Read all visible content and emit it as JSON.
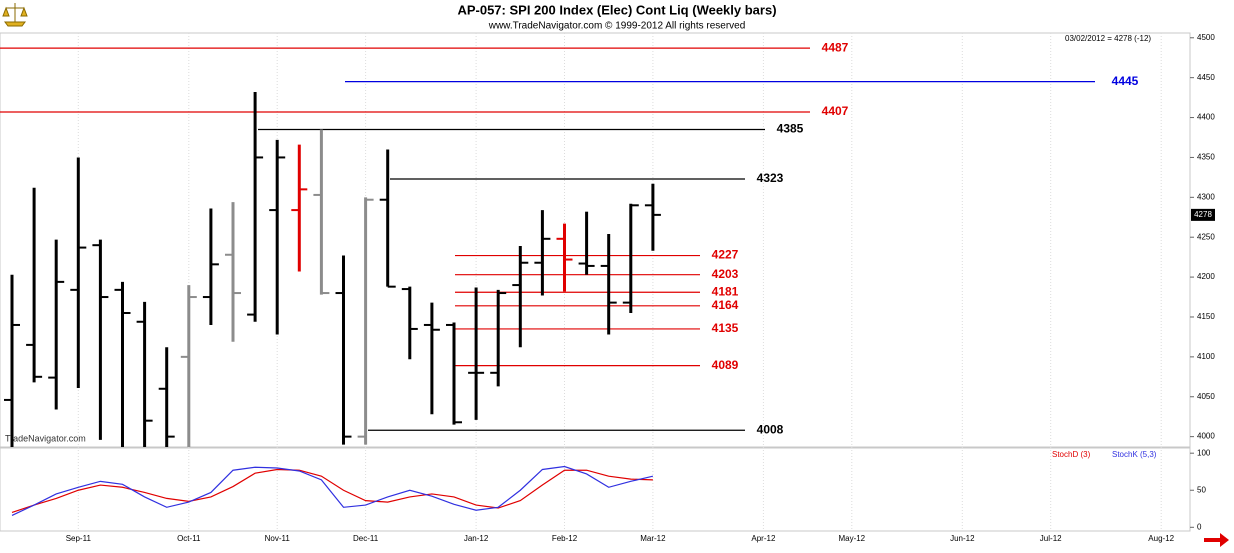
{
  "chart_data": [
    {
      "type": "ohlc",
      "title": "AP-057:  SPI 200 Index (Elec) Cont Liq  (Weekly bars)",
      "subtitle": "www.TradeNavigator.com © 1999-2012 All rights reserved",
      "info": "03/02/2012 = 4278 (-12)",
      "watermark": "TradeNavigator.com",
      "categories": [
        null,
        null,
        null,
        "Sep-11",
        null,
        null,
        null,
        null,
        "Oct-11",
        null,
        null,
        null,
        "Nov-11",
        null,
        null,
        null,
        "Dec-11",
        null,
        null,
        null,
        null,
        "Jan-12",
        null,
        null,
        null,
        "Feb-12",
        null,
        null,
        null,
        "Mar-12",
        null,
        null,
        null,
        null,
        "Apr-12",
        null,
        null,
        null,
        "May-12",
        null,
        null,
        null,
        null,
        "Jun-12",
        null,
        null,
        null,
        "Jul-12",
        null,
        null,
        null,
        null,
        "Aug-12",
        null
      ],
      "open": [
        4046,
        4115,
        4074,
        4184,
        4240,
        4184,
        4144,
        4060,
        4100,
        4175,
        4228,
        4153,
        4284,
        4284,
        4303,
        4180,
        4000,
        4297,
        4185,
        4140,
        4140,
        4080,
        4080,
        4190,
        4218,
        4248,
        4217,
        4214,
        4168,
        4290,
        null,
        null,
        null,
        null,
        null,
        null,
        null,
        null,
        null,
        null,
        null,
        null,
        null,
        null,
        null,
        null,
        null,
        null,
        null,
        null,
        null,
        null,
        null,
        null
      ],
      "high": [
        4203,
        4312,
        4247,
        4350,
        4247,
        4194,
        4169,
        4112,
        4190,
        4286,
        4294,
        4432,
        4372,
        4366,
        4385,
        4227,
        4300,
        4360,
        4188,
        4168,
        4143,
        4187,
        4184,
        4239,
        4284,
        4267,
        4282,
        4254,
        4292,
        4317,
        null,
        null,
        null,
        null,
        null,
        null,
        null,
        null,
        null,
        null,
        null,
        null,
        null,
        null,
        null,
        null,
        null,
        null,
        null,
        null,
        null,
        null,
        null,
        null
      ],
      "low": [
        3980,
        4068,
        4034,
        4061,
        3996,
        3980,
        3980,
        3980,
        3980,
        4140,
        4119,
        4144,
        4128,
        4207,
        4178,
        3990,
        3990,
        4188,
        4097,
        4028,
        4015,
        4021,
        4063,
        4112,
        4177,
        4182,
        4203,
        4128,
        4155,
        4233,
        null,
        null,
        null,
        null,
        null,
        null,
        null,
        null,
        null,
        null,
        null,
        null,
        null,
        null,
        null,
        null,
        null,
        null,
        null,
        null,
        null,
        null,
        null,
        null
      ],
      "close": [
        4140,
        4075,
        4194,
        4237,
        4175,
        4155,
        4020,
        4000,
        4175,
        4216,
        4180,
        4350,
        4350,
        4310,
        4180,
        4000,
        4297,
        4188,
        4135,
        4134,
        4018,
        4080,
        4180,
        4218,
        4248,
        4222,
        4214,
        4168,
        4290,
        4278,
        null,
        null,
        null,
        null,
        null,
        null,
        null,
        null,
        null,
        null,
        null,
        null,
        null,
        null,
        null,
        null,
        null,
        null,
        null,
        null,
        null,
        null,
        null,
        null
      ],
      "colors": [
        "#000000",
        "#000000",
        "#000000",
        "#000000",
        "#000000",
        "#000000",
        "#000000",
        "#000000",
        "#8c8c8c",
        "#000000",
        "#8c8c8c",
        "#000000",
        "#000000",
        "#e00000",
        "#8c8c8c",
        "#000000",
        "#8c8c8c",
        "#000000",
        "#000000",
        "#000000",
        "#000000",
        "#000000",
        "#000000",
        "#000000",
        "#000000",
        "#e00000",
        "#000000",
        "#000000",
        "#000000",
        "#000000",
        null,
        null,
        null,
        null,
        null,
        null,
        null,
        null,
        null,
        null,
        null,
        null,
        null,
        null,
        null,
        null,
        null,
        null,
        null,
        null,
        null,
        null,
        null,
        null
      ],
      "levels": [
        {
          "value": 4487,
          "color": "#e00000"
        },
        {
          "value": 4445,
          "color": "#0000e0"
        },
        {
          "value": 4407,
          "color": "#e00000"
        },
        {
          "value": 4385,
          "color": "#000000"
        },
        {
          "value": 4323,
          "color": "#000000"
        },
        {
          "value": 4227,
          "color": "#e00000"
        },
        {
          "value": 4203,
          "color": "#e00000"
        },
        {
          "value": 4181,
          "color": "#e00000"
        },
        {
          "value": 4164,
          "color": "#e00000"
        },
        {
          "value": 4135,
          "color": "#e00000"
        },
        {
          "value": 4089,
          "color": "#e00000"
        },
        {
          "value": 4008,
          "color": "#000000"
        }
      ],
      "ylim": [
        3987,
        4506
      ],
      "yticks": [
        4000,
        4050,
        4100,
        4150,
        4200,
        4250,
        4300,
        4350,
        4400,
        4450,
        4500
      ]
    },
    {
      "type": "line",
      "series": [
        {
          "name": "StochD (3)",
          "color": "#e00000",
          "values": [
            20,
            30,
            39,
            50,
            57,
            54,
            47,
            39,
            35,
            41,
            55,
            73,
            78,
            77,
            69,
            50,
            36,
            34,
            41,
            45,
            41,
            30,
            26,
            36,
            57,
            77,
            77,
            69,
            65,
            64,
            null,
            null,
            null,
            null,
            null,
            null,
            null,
            null,
            null,
            null,
            null,
            null,
            null,
            null,
            null,
            null,
            null,
            null,
            null,
            null,
            null,
            null,
            null,
            null
          ]
        },
        {
          "name": "StochK (5,3)",
          "color": "#3030e0",
          "values": [
            16,
            30,
            45,
            54,
            62,
            58,
            41,
            27,
            34,
            47,
            77,
            81,
            80,
            76,
            64,
            27,
            30,
            41,
            50,
            42,
            31,
            23,
            27,
            50,
            78,
            82,
            72,
            54,
            62,
            69,
            null,
            null,
            null,
            null,
            null,
            null,
            null,
            null,
            null,
            null,
            null,
            null,
            null,
            null,
            null,
            null,
            null,
            null,
            null,
            null,
            null,
            null,
            null,
            null
          ]
        }
      ],
      "ylim": [
        -5,
        107
      ],
      "yticks": [
        0,
        50,
        100
      ]
    }
  ]
}
